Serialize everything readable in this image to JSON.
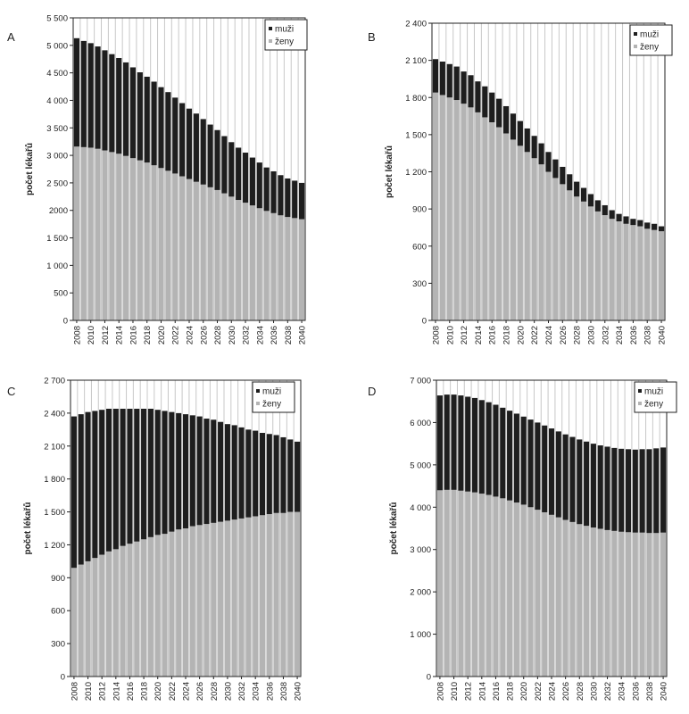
{
  "chart_data": [
    {
      "panel": "A",
      "type": "bar",
      "stacked": true,
      "ylabel": "počet lékařů",
      "ylim": [
        0,
        5500
      ],
      "yticks": [
        0,
        500,
        1000,
        1500,
        2000,
        2500,
        3000,
        3500,
        4000,
        4500,
        5000,
        5500
      ],
      "ytick_labels": [
        "0",
        "500",
        "1 000",
        "1 500",
        "2000",
        "2 500",
        "3 000",
        "3 500",
        "4 000",
        "4 500",
        "5 000",
        "5 500"
      ],
      "categories": [
        2008,
        2009,
        2010,
        2011,
        2012,
        2013,
        2014,
        2015,
        2016,
        2017,
        2018,
        2019,
        2020,
        2021,
        2022,
        2023,
        2024,
        2025,
        2026,
        2027,
        2028,
        2029,
        2030,
        2031,
        2032,
        2033,
        2034,
        2035,
        2036,
        2037,
        2038,
        2039,
        2040
      ],
      "xtick_labels": [
        "2008",
        "2010",
        "2012",
        "2014",
        "2016",
        "2018",
        "2020",
        "2022",
        "2024",
        "2026",
        "2028",
        "2030",
        "2032",
        "2034",
        "2036",
        "2038",
        "2040"
      ],
      "legend_position": "top-right",
      "series": [
        {
          "name": "ženy",
          "color": "#b4b4b4",
          "values": [
            3160,
            3150,
            3140,
            3120,
            3090,
            3060,
            3030,
            2990,
            2950,
            2910,
            2870,
            2820,
            2770,
            2720,
            2670,
            2620,
            2570,
            2520,
            2470,
            2420,
            2370,
            2310,
            2250,
            2190,
            2140,
            2090,
            2040,
            1990,
            1950,
            1910,
            1880,
            1860,
            1840
          ]
        },
        {
          "name": "muži",
          "color": "#1e1e1e",
          "values": [
            1970,
            1930,
            1900,
            1860,
            1820,
            1780,
            1740,
            1700,
            1650,
            1600,
            1560,
            1520,
            1470,
            1430,
            1380,
            1330,
            1280,
            1240,
            1190,
            1140,
            1090,
            1040,
            990,
            950,
            910,
            870,
            830,
            790,
            760,
            730,
            700,
            680,
            660
          ]
        }
      ]
    },
    {
      "panel": "B",
      "type": "bar",
      "stacked": true,
      "ylabel": "počet lékařů",
      "ylim": [
        0,
        2400
      ],
      "yticks": [
        0,
        300,
        600,
        900,
        1200,
        1500,
        1800,
        2100,
        2400
      ],
      "ytick_labels": [
        "0",
        "300",
        "600",
        "900",
        "1 200",
        "1 500",
        "1 800",
        "2 100",
        "2 400"
      ],
      "categories": [
        2008,
        2009,
        2010,
        2011,
        2012,
        2013,
        2014,
        2015,
        2016,
        2017,
        2018,
        2019,
        2020,
        2021,
        2022,
        2023,
        2024,
        2025,
        2026,
        2027,
        2028,
        2029,
        2030,
        2031,
        2032,
        2033,
        2034,
        2035,
        2036,
        2037,
        2038,
        2039,
        2040
      ],
      "xtick_labels": [
        "2008",
        "2010",
        "2012",
        "2014",
        "2016",
        "2018",
        "2020",
        "2022",
        "2024",
        "2026",
        "2028",
        "2030",
        "2032",
        "2034",
        "2036",
        "2038",
        "2040"
      ],
      "legend_position": "top-right",
      "series": [
        {
          "name": "ženy",
          "color": "#b4b4b4",
          "values": [
            1840,
            1820,
            1800,
            1780,
            1750,
            1720,
            1680,
            1640,
            1600,
            1560,
            1510,
            1460,
            1410,
            1360,
            1310,
            1260,
            1200,
            1150,
            1100,
            1050,
            1000,
            960,
            920,
            880,
            850,
            820,
            800,
            780,
            770,
            760,
            740,
            730,
            720
          ]
        },
        {
          "name": "muži",
          "color": "#1e1e1e",
          "values": [
            270,
            270,
            270,
            270,
            260,
            260,
            250,
            250,
            240,
            230,
            220,
            210,
            200,
            190,
            180,
            170,
            160,
            150,
            140,
            130,
            120,
            110,
            100,
            90,
            80,
            70,
            60,
            60,
            50,
            50,
            50,
            50,
            40
          ]
        }
      ]
    },
    {
      "panel": "C",
      "type": "bar",
      "stacked": true,
      "ylabel": "počet lékařů",
      "ylim": [
        0,
        2700
      ],
      "yticks": [
        0,
        300,
        600,
        900,
        1200,
        1500,
        1800,
        2100,
        2400,
        2700
      ],
      "ytick_labels": [
        "0",
        "300",
        "600",
        "900",
        "1 200",
        "1 500",
        "1 800",
        "2 100",
        "2 400",
        "2 700"
      ],
      "categories": [
        2008,
        2009,
        2010,
        2011,
        2012,
        2013,
        2014,
        2015,
        2016,
        2017,
        2018,
        2019,
        2020,
        2021,
        2022,
        2023,
        2024,
        2025,
        2026,
        2027,
        2028,
        2029,
        2030,
        2031,
        2032,
        2033,
        2034,
        2035,
        2036,
        2037,
        2038,
        2039,
        2040
      ],
      "xtick_labels": [
        "2008",
        "2010",
        "2012",
        "2014",
        "2016",
        "2018",
        "2020",
        "2022",
        "2024",
        "2026",
        "2028",
        "2030",
        "2032",
        "2034",
        "2036",
        "2038",
        "2040"
      ],
      "legend_position": "top-right",
      "series": [
        {
          "name": "ženy",
          "color": "#b4b4b4",
          "values": [
            990,
            1020,
            1050,
            1080,
            1110,
            1140,
            1160,
            1190,
            1210,
            1230,
            1250,
            1270,
            1290,
            1300,
            1320,
            1340,
            1350,
            1370,
            1380,
            1390,
            1400,
            1410,
            1420,
            1430,
            1440,
            1450,
            1460,
            1470,
            1480,
            1490,
            1490,
            1500,
            1500
          ]
        },
        {
          "name": "muži",
          "color": "#1e1e1e",
          "values": [
            1380,
            1370,
            1360,
            1340,
            1320,
            1300,
            1280,
            1250,
            1230,
            1210,
            1190,
            1170,
            1140,
            1120,
            1090,
            1060,
            1040,
            1010,
            990,
            960,
            940,
            910,
            880,
            860,
            830,
            800,
            780,
            750,
            730,
            710,
            690,
            660,
            640
          ]
        }
      ]
    },
    {
      "panel": "D",
      "type": "bar",
      "stacked": true,
      "ylabel": "počet lékařů",
      "ylim": [
        0,
        7000
      ],
      "yticks": [
        0,
        1000,
        2000,
        3000,
        4000,
        5000,
        6000,
        7000
      ],
      "ytick_labels": [
        "0",
        "1 000",
        "2 000",
        "3 000",
        "4 000",
        "5 000",
        "6 000",
        "7 000"
      ],
      "categories": [
        2008,
        2009,
        2010,
        2011,
        2012,
        2013,
        2014,
        2015,
        2016,
        2017,
        2018,
        2019,
        2020,
        2021,
        2022,
        2023,
        2024,
        2025,
        2026,
        2027,
        2028,
        2029,
        2030,
        2031,
        2032,
        2033,
        2034,
        2035,
        2036,
        2037,
        2038,
        2039,
        2040
      ],
      "xtick_labels": [
        "2008",
        "2010",
        "2012",
        "2014",
        "2016",
        "2018",
        "2020",
        "2022",
        "2024",
        "2026",
        "2028",
        "2030",
        "2032",
        "2034",
        "2036",
        "2038",
        "2040"
      ],
      "legend_position": "top-right",
      "series": [
        {
          "name": "ženy",
          "color": "#b4b4b4",
          "values": [
            4400,
            4410,
            4410,
            4390,
            4370,
            4350,
            4320,
            4290,
            4250,
            4210,
            4160,
            4110,
            4060,
            4000,
            3940,
            3880,
            3820,
            3760,
            3700,
            3650,
            3600,
            3560,
            3520,
            3490,
            3460,
            3440,
            3420,
            3410,
            3400,
            3400,
            3390,
            3390,
            3400
          ]
        },
        {
          "name": "muži",
          "color": "#1e1e1e",
          "values": [
            2240,
            2250,
            2250,
            2250,
            2240,
            2230,
            2210,
            2190,
            2170,
            2140,
            2120,
            2100,
            2080,
            2070,
            2060,
            2050,
            2040,
            2030,
            2020,
            2010,
            2000,
            1990,
            1980,
            1970,
            1970,
            1960,
            1960,
            1960,
            1960,
            1970,
            1980,
            2000,
            2010
          ]
        }
      ]
    }
  ]
}
